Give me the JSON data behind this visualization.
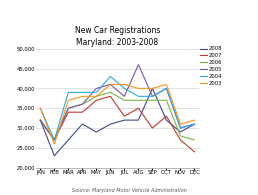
{
  "title": "New Car Registrations\nMaryland: 2003-2008",
  "subtitle": "Source: Maryland Motor Vehicle Administration",
  "months": [
    "JAN",
    "FEB",
    "MAR",
    "APR",
    "MAY",
    "JUN",
    "JUL",
    "AUG",
    "SEP",
    "OCT",
    "NOV",
    "DEC"
  ],
  "series": {
    "2008": {
      "color": "#3d4b8c",
      "values": [
        32000,
        23000,
        27000,
        31000,
        29000,
        31000,
        32000,
        32000,
        40000,
        32000,
        29000,
        31000
      ]
    },
    "2007": {
      "color": "#c0392b",
      "values": [
        32000,
        27000,
        34000,
        34000,
        37000,
        38000,
        33000,
        35000,
        30000,
        33000,
        27000,
        24000
      ]
    },
    "2006": {
      "color": "#7cb342",
      "values": [
        32000,
        27000,
        35000,
        36000,
        38000,
        39000,
        37000,
        37000,
        37000,
        37000,
        28000,
        27000
      ]
    },
    "2005": {
      "color": "#7b55a0",
      "values": [
        32000,
        27000,
        35000,
        36000,
        40000,
        41000,
        38000,
        46000,
        38000,
        40000,
        30000,
        31000
      ]
    },
    "2004": {
      "color": "#29abe2",
      "values": [
        35000,
        27000,
        39000,
        39000,
        39000,
        43000,
        40000,
        38000,
        38000,
        40000,
        30000,
        31000
      ]
    },
    "2003": {
      "color": "#f7941d",
      "values": [
        35000,
        26000,
        37000,
        38000,
        38000,
        41000,
        41000,
        40000,
        40000,
        41000,
        31000,
        32000
      ]
    }
  },
  "ylim": [
    20000,
    50000
  ],
  "yticks": [
    20000,
    25000,
    30000,
    35000,
    40000,
    45000,
    50000
  ],
  "legend_order": [
    "2008",
    "2007",
    "2006",
    "2005",
    "2004",
    "2003"
  ]
}
